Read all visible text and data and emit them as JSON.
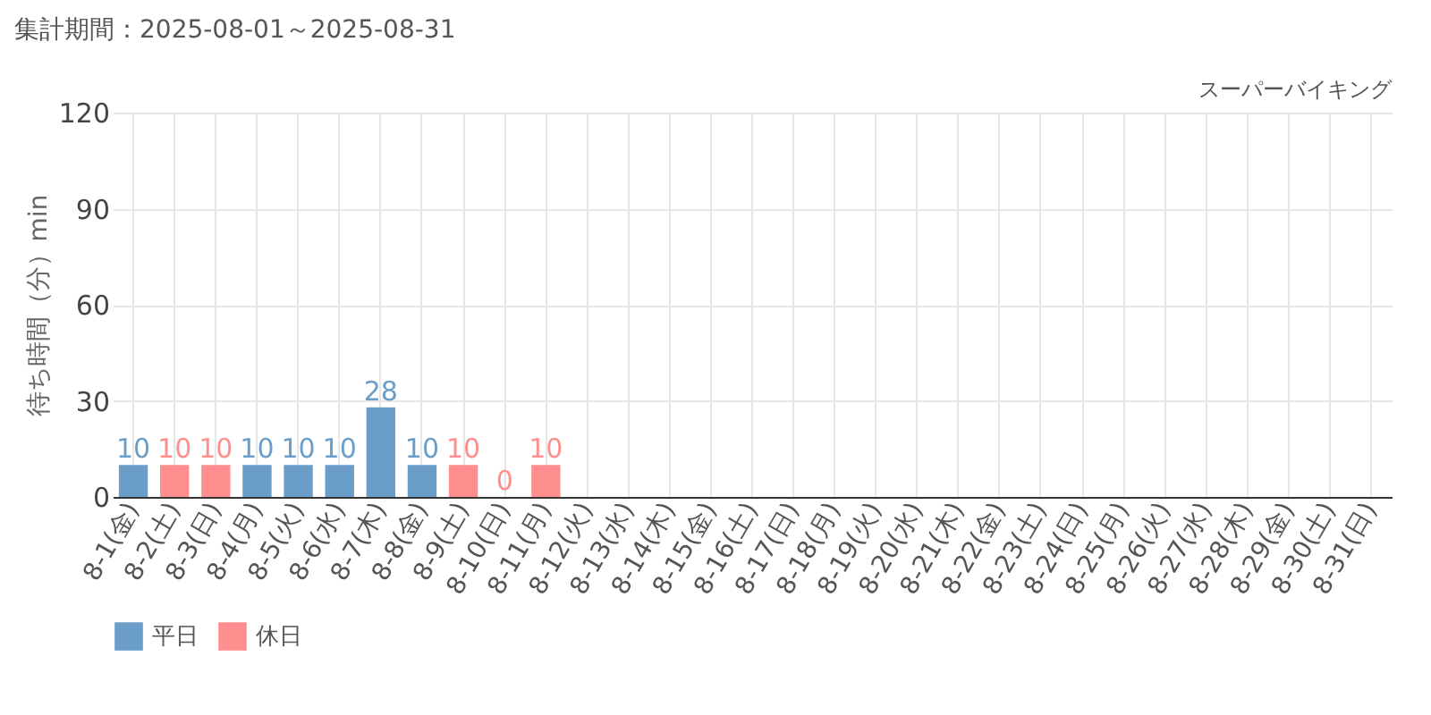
{
  "chart_data": {
    "type": "bar",
    "title": "集計期間：2025-08-01～2025-08-31",
    "subtitle": "スーパーバイキング",
    "ylabel": "待ち時間（分）min",
    "categories": [
      "8-1(金)",
      "8-2(土)",
      "8-3(日)",
      "8-4(月)",
      "8-5(火)",
      "8-6(水)",
      "8-7(木)",
      "8-8(金)",
      "8-9(土)",
      "8-10(日)",
      "8-11(月)",
      "8-12(火)",
      "8-13(水)",
      "8-14(木)",
      "8-15(金)",
      "8-16(土)",
      "8-17(日)",
      "8-18(月)",
      "8-19(火)",
      "8-20(水)",
      "8-21(木)",
      "8-22(金)",
      "8-23(土)",
      "8-24(日)",
      "8-25(月)",
      "8-26(火)",
      "8-27(水)",
      "8-28(木)",
      "8-29(金)",
      "8-30(土)",
      "8-31(日)"
    ],
    "series": [
      {
        "name": "平日",
        "color": "#6a9ec8",
        "values": [
          10,
          null,
          null,
          10,
          10,
          10,
          28,
          10,
          null,
          null,
          null,
          null,
          null,
          null,
          null,
          null,
          null,
          null,
          null,
          null,
          null,
          null,
          null,
          null,
          null,
          null,
          null,
          null,
          null,
          null,
          null
        ]
      },
      {
        "name": "休日",
        "color": "#ff8f8f",
        "values": [
          null,
          10,
          10,
          null,
          null,
          null,
          null,
          null,
          10,
          0,
          10,
          null,
          null,
          null,
          null,
          null,
          null,
          null,
          null,
          null,
          null,
          null,
          null,
          null,
          null,
          null,
          null,
          null,
          null,
          null,
          null
        ]
      }
    ],
    "ylim": [
      0,
      120
    ],
    "yticks": [
      0,
      30,
      60,
      90,
      120
    ],
    "grid": true,
    "legend": "bottom left",
    "data_labels": true
  }
}
